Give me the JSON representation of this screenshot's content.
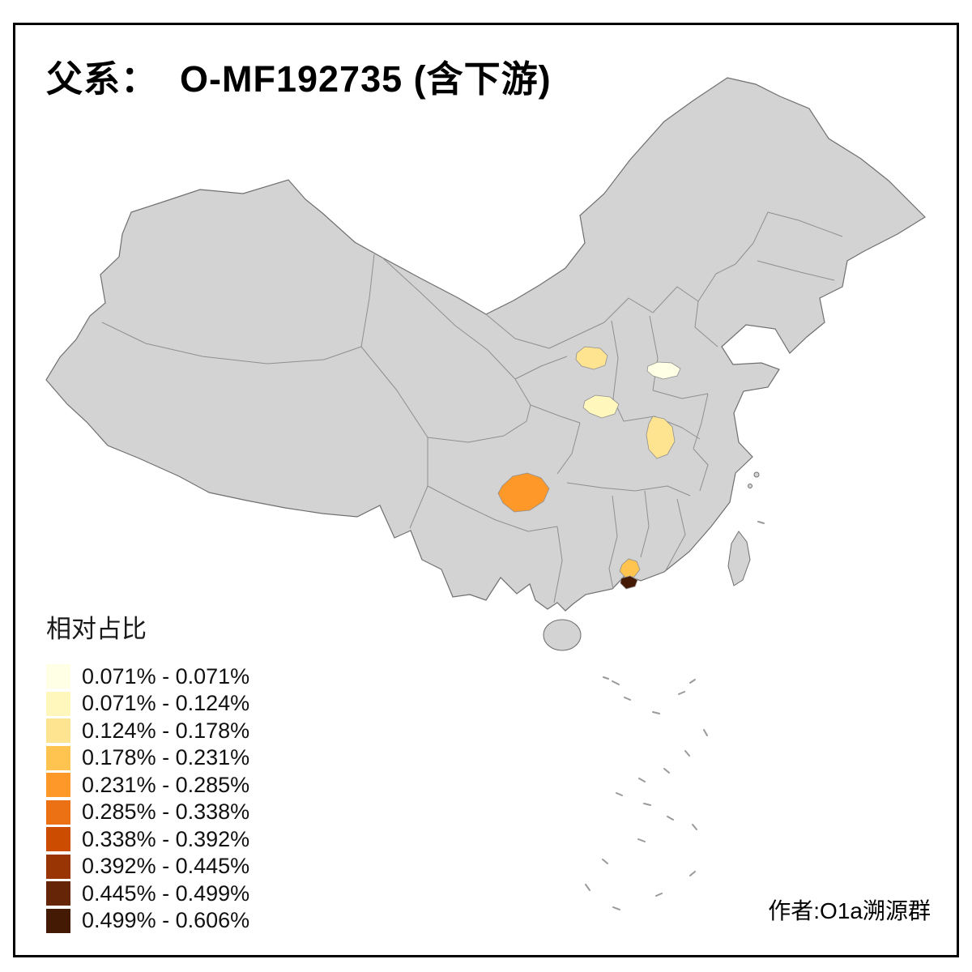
{
  "title": "父系：  O-MF192735 (含下游)",
  "attribution": "作者:O1a溯源群",
  "legend": {
    "title": "相对占比",
    "classes": [
      {
        "label": "0.071% - 0.071%",
        "color": "#FFFFE5"
      },
      {
        "label": "0.071% - 0.124%",
        "color": "#FFF7BC"
      },
      {
        "label": "0.124% - 0.178%",
        "color": "#FEE391"
      },
      {
        "label": "0.178% - 0.231%",
        "color": "#FEC44F"
      },
      {
        "label": "0.231% - 0.285%",
        "color": "#FE9929"
      },
      {
        "label": "0.285% - 0.338%",
        "color": "#EC7014"
      },
      {
        "label": "0.338% - 0.392%",
        "color": "#CC4C02"
      },
      {
        "label": "0.392% - 0.445%",
        "color": "#993404"
      },
      {
        "label": "0.445% - 0.499%",
        "color": "#662506"
      },
      {
        "label": "0.499% - 0.606%",
        "color": "#451A04"
      }
    ]
  },
  "map": {
    "land_color": "#D3D3D3",
    "province_border_color": "#8F8F8F",
    "outline_color": "#6F6F6F",
    "regions": [
      {
        "name": "region-shaanxi-central",
        "color": "#FEE391"
      },
      {
        "name": "region-north-china-plain",
        "color": "#FFFFE5"
      },
      {
        "name": "region-shaanxi-south",
        "color": "#FFF7BC"
      },
      {
        "name": "region-anhui",
        "color": "#FEE391"
      },
      {
        "name": "region-guizhou",
        "color": "#FE9929"
      },
      {
        "name": "region-guangdong",
        "color": "#FEC44F"
      },
      {
        "name": "region-pearl-river-delta",
        "color": "#451A04"
      }
    ]
  }
}
